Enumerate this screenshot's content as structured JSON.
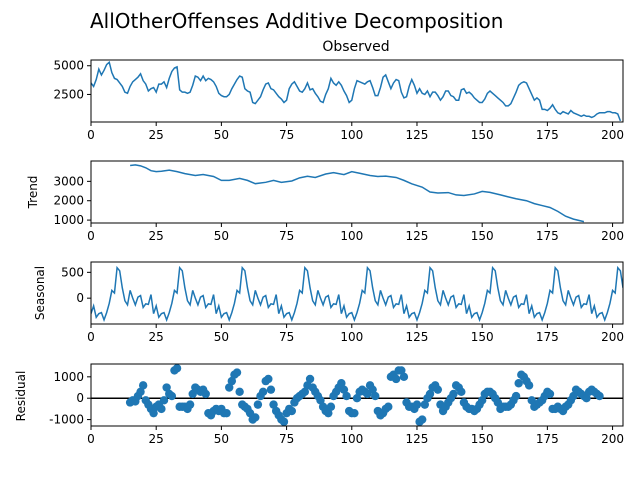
{
  "figure": {
    "title": "AllOtherOffenses Additive Decomposition"
  },
  "chart_data": [
    {
      "type": "line",
      "title": "Observed",
      "ylabel": "",
      "xlim": [
        0,
        204
      ],
      "ylim": [
        100,
        5500
      ],
      "xticks": [
        0,
        25,
        50,
        75,
        100,
        125,
        150,
        175,
        200
      ],
      "yticks": [
        2500,
        5000
      ],
      "color": "#1f77b4",
      "x_start": 0,
      "values": [
        3500,
        3200,
        3800,
        4700,
        4200,
        4600,
        5100,
        5300,
        4400,
        3900,
        3800,
        3500,
        3200,
        2700,
        2600,
        3200,
        3600,
        3800,
        4000,
        4300,
        3700,
        3400,
        2800,
        3000,
        3100,
        2700,
        3400,
        3400,
        3600,
        3100,
        3900,
        4500,
        4800,
        4900,
        2900,
        2700,
        2700,
        2600,
        2700,
        3300,
        4100,
        4000,
        3700,
        4100,
        3700,
        3900,
        3800,
        3600,
        3200,
        2600,
        2400,
        2300,
        2300,
        2500,
        3000,
        3400,
        3800,
        4100,
        4000,
        3000,
        2800,
        2700,
        1800,
        1700,
        2000,
        2300,
        2900,
        3400,
        3500,
        3000,
        2900,
        2600,
        2300,
        2100,
        1800,
        2000,
        3000,
        3400,
        3600,
        3200,
        2800,
        2700,
        3000,
        3500,
        2900,
        3000,
        2600,
        2300,
        1900,
        1800,
        2500,
        3000,
        3900,
        3500,
        3300,
        3600,
        3300,
        2800,
        2400,
        1800,
        2000,
        3000,
        3700,
        3600,
        3500,
        3400,
        3600,
        3700,
        3100,
        2400,
        2400,
        3100,
        4000,
        4200,
        3600,
        3000,
        3500,
        3800,
        3700,
        2700,
        2200,
        2300,
        3200,
        3800,
        3300,
        2600,
        3000,
        2600,
        2500,
        2800,
        2300,
        2700,
        2700,
        2400,
        2000,
        2300,
        2800,
        2800,
        2400,
        2300,
        2000,
        2000,
        2900,
        3000,
        2600,
        2700,
        2500,
        2200,
        2000,
        1800,
        1800,
        2100,
        2600,
        2800,
        2600,
        2400,
        2200,
        2000,
        1800,
        1500,
        1500,
        1700,
        2200,
        2700,
        3300,
        3500,
        3600,
        3500,
        3000,
        2500,
        2000,
        2200,
        2000,
        1200,
        1200,
        1100,
        1300,
        1600,
        1200,
        900,
        800,
        1000,
        900,
        800,
        1100,
        900,
        800,
        700,
        600,
        700,
        600,
        600,
        500,
        600,
        800,
        900,
        900,
        900,
        1000,
        1000,
        900,
        900,
        800,
        200
      ]
    },
    {
      "type": "line",
      "title": "",
      "ylabel": "Trend",
      "xlim": [
        0,
        204
      ],
      "ylim": [
        850,
        4050
      ],
      "xticks": [
        0,
        25,
        50,
        75,
        100,
        125,
        150,
        175,
        200
      ],
      "yticks": [
        1000,
        2000,
        3000
      ],
      "color": "#1f77b4",
      "x": [
        15,
        17,
        19,
        21,
        23,
        25,
        27,
        30,
        33,
        36,
        40,
        43,
        47,
        50,
        53,
        57,
        60,
        63,
        67,
        70,
        73,
        77,
        80,
        83,
        86,
        90,
        93,
        97,
        100,
        103,
        107,
        110,
        113,
        117,
        120,
        123,
        127,
        130,
        133,
        137,
        140,
        143,
        147,
        150,
        153,
        157,
        160,
        163,
        167,
        170,
        173,
        176,
        179,
        182,
        185,
        189
      ],
      "values": [
        3820,
        3850,
        3800,
        3700,
        3550,
        3500,
        3520,
        3580,
        3500,
        3400,
        3300,
        3350,
        3250,
        3050,
        3050,
        3150,
        3050,
        2880,
        2950,
        3050,
        2950,
        3020,
        3180,
        3260,
        3200,
        3380,
        3450,
        3350,
        3500,
        3420,
        3300,
        3250,
        3270,
        3200,
        3050,
        2870,
        2700,
        2450,
        2400,
        2420,
        2300,
        2270,
        2350,
        2480,
        2430,
        2300,
        2200,
        2100,
        2000,
        1850,
        1750,
        1650,
        1450,
        1200,
        1050,
        920
      ]
    },
    {
      "type": "line",
      "title": "",
      "ylabel": "Seasonal",
      "xlim": [
        0,
        204
      ],
      "ylim": [
        -500,
        700
      ],
      "xticks": [
        0,
        25,
        50,
        75,
        100,
        125,
        150,
        175,
        200
      ],
      "yticks": [
        0,
        500
      ],
      "color": "#1f77b4",
      "x_start": 0,
      "period": 24,
      "pattern": [
        -300,
        -150,
        -370,
        -300,
        -280,
        -420,
        -280,
        -100,
        150,
        100,
        590,
        530,
        200,
        -50,
        -130,
        150,
        0,
        -130,
        20,
        50,
        -180,
        -110,
        -120,
        70
      ]
    },
    {
      "type": "scatter",
      "title": "",
      "ylabel": "Residual",
      "xlim": [
        0,
        204
      ],
      "ylim": [
        -1300,
        1600
      ],
      "xticks": [
        0,
        25,
        50,
        75,
        100,
        125,
        150,
        175,
        200
      ],
      "yticks": [
        -1000,
        0,
        1000
      ],
      "hline": 0,
      "color": "#1f77b4",
      "x_start": 15,
      "values": [
        -200,
        -100,
        -150,
        100,
        300,
        600,
        -100,
        -300,
        -500,
        -700,
        -400,
        -300,
        -500,
        -100,
        500,
        200,
        100,
        1300,
        1400,
        -400,
        -400,
        -400,
        -500,
        -300,
        200,
        500,
        400,
        300,
        400,
        200,
        -700,
        -800,
        -600,
        -500,
        -600,
        -500,
        -700,
        -700,
        500,
        800,
        1100,
        1200,
        300,
        -300,
        -400,
        -500,
        -700,
        -1000,
        -900,
        -300,
        100,
        300,
        800,
        900,
        400,
        -300,
        -600,
        -800,
        -1000,
        -1100,
        -700,
        -500,
        -600,
        -200,
        0,
        100,
        200,
        300,
        600,
        900,
        500,
        300,
        100,
        -100,
        -400,
        -600,
        -700,
        -400,
        100,
        300,
        500,
        700,
        400,
        100,
        -600,
        -700,
        -700,
        0,
        300,
        400,
        300,
        200,
        600,
        400,
        100,
        -600,
        -800,
        -700,
        -500,
        -400,
        1000,
        1100,
        900,
        1300,
        1300,
        1000,
        -200,
        -400,
        -400,
        -500,
        -300,
        -1100,
        -1000,
        -300,
        0,
        200,
        500,
        600,
        400,
        -300,
        -600,
        -400,
        -200,
        0,
        200,
        600,
        500,
        300,
        -200,
        -400,
        -500,
        -500,
        -600,
        -500,
        -300,
        -100,
        200,
        300,
        300,
        200,
        0,
        -200,
        -500,
        -400,
        -400,
        -400,
        -300,
        -100,
        100,
        700,
        1100,
        1000,
        800,
        600,
        -100,
        -400,
        -300,
        -200,
        -100,
        100,
        300,
        200,
        -500,
        -500,
        -400,
        -500,
        -600,
        -400,
        -300,
        -100,
        100,
        400,
        300,
        200,
        100,
        0,
        300,
        400,
        300,
        200,
        100
      ]
    }
  ]
}
